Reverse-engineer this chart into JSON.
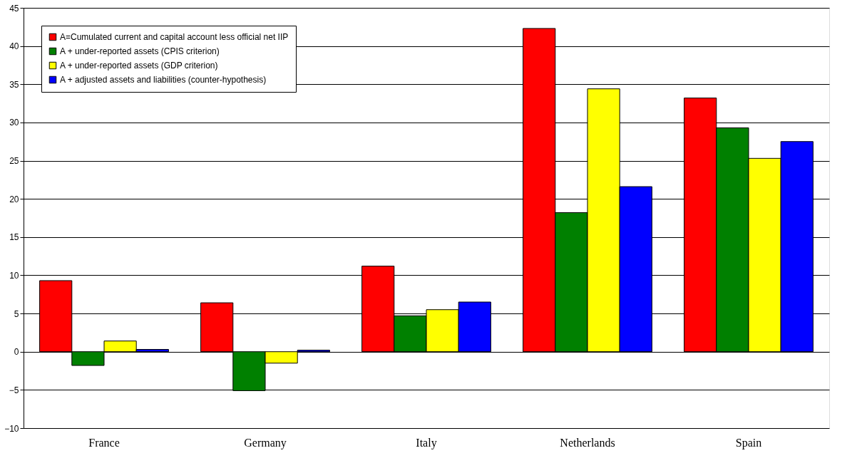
{
  "chart_data": {
    "type": "bar",
    "categories": [
      "France",
      "Germany",
      "Italy",
      "Netherlands",
      "Spain"
    ],
    "series": [
      {
        "name": "A=Cumulated current and capital account less official net IIP",
        "color": "#ff0000",
        "values": [
          9.3,
          6.4,
          11.2,
          42.3,
          33.2
        ]
      },
      {
        "name": "A + under-reported assets (CPIS criterion)",
        "color": "#008000",
        "values": [
          -1.8,
          -5.1,
          4.7,
          18.2,
          29.3
        ]
      },
      {
        "name": "A + under-reported assets (GDP criterion)",
        "color": "#ffff00",
        "values": [
          1.4,
          -1.5,
          5.5,
          34.4,
          25.3
        ]
      },
      {
        "name": "A + adjusted assets and liabilities (counter-hypothesis)",
        "color": "#0000ff",
        "values": [
          0.3,
          0.2,
          6.5,
          21.6,
          27.5
        ]
      }
    ],
    "ylim": [
      -10,
      45
    ],
    "yticks": [
      -10,
      -5,
      0,
      5,
      10,
      15,
      20,
      25,
      30,
      35,
      40,
      45
    ],
    "grid": "y",
    "legend": "top left"
  }
}
